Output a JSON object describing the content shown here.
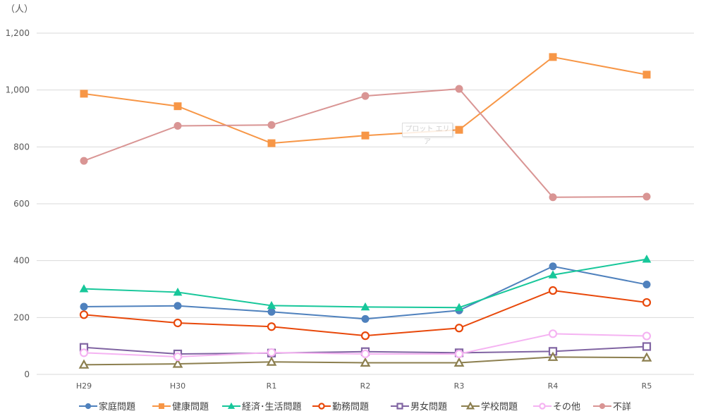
{
  "chart_data": {
    "type": "line",
    "title": "",
    "unit_label": "（人）",
    "xlabel": "",
    "ylabel": "",
    "ylim": [
      0,
      1200
    ],
    "yticks": [
      0,
      200,
      400,
      600,
      800,
      1000,
      1200
    ],
    "ytick_labels": [
      "0",
      "200",
      "400",
      "600",
      "800",
      "1,000",
      "1,200"
    ],
    "categories": [
      "H29",
      "H30",
      "R1",
      "R2",
      "R3",
      "R4",
      "R5"
    ],
    "grid": true,
    "legend_position": "bottom",
    "series": [
      {
        "name": "家庭問題",
        "color": "#4f81bd",
        "marker": "circle",
        "values": [
          238,
          241,
          220,
          195,
          225,
          380,
          316
        ]
      },
      {
        "name": "健康問題",
        "color": "#f79646",
        "marker": "square",
        "values": [
          987,
          943,
          813,
          840,
          860,
          1116,
          1054
        ]
      },
      {
        "name": "経済･生活問題",
        "color": "#17c79a",
        "marker": "triangle",
        "values": [
          301,
          289,
          242,
          237,
          235,
          350,
          405
        ]
      },
      {
        "name": "勤務問題",
        "color": "#e8480a",
        "marker": "circle-open",
        "values": [
          210,
          181,
          168,
          136,
          163,
          295,
          253
        ]
      },
      {
        "name": "男女問題",
        "color": "#8064a2",
        "marker": "square-open",
        "values": [
          95,
          72,
          75,
          80,
          76,
          81,
          98
        ]
      },
      {
        "name": "学校問題",
        "color": "#8c7f4f",
        "marker": "triangle-open",
        "values": [
          34,
          37,
          44,
          41,
          41,
          61,
          59
        ]
      },
      {
        "name": "その他",
        "color": "#f5b3f2",
        "marker": "circle-open",
        "values": [
          76,
          62,
          77,
          72,
          72,
          143,
          135
        ]
      },
      {
        "name": "不詳",
        "color": "#d99594",
        "marker": "circle",
        "values": [
          751,
          874,
          877,
          979,
          1004,
          623,
          625
        ]
      }
    ]
  },
  "tooltip": {
    "text": "プロット エリア"
  }
}
